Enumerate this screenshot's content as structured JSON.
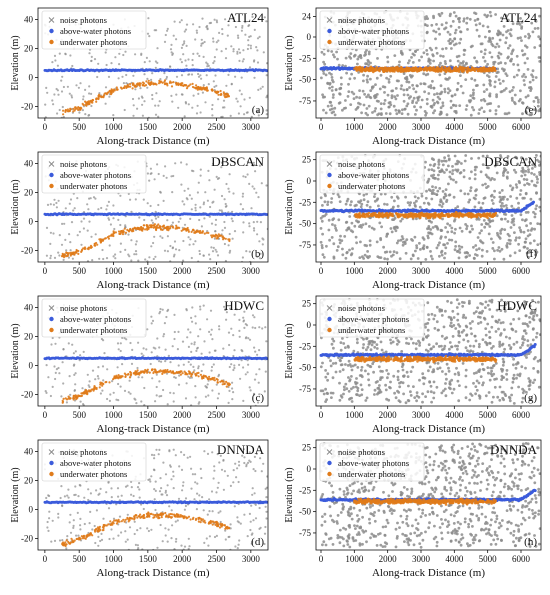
{
  "figure": {
    "legend_labels": [
      "noise photons",
      "above-water photons",
      "underwater photons"
    ],
    "colors": {
      "noise": "#8c8c8c",
      "above": "#3b5bdb",
      "under": "#e07b1a",
      "axis": "#111111"
    }
  },
  "chart_data": [
    {
      "type": "scatter",
      "panel": "a",
      "method": "ATL24",
      "xlabel": "Along-track Distance (m)",
      "ylabel": "Elevation (m)",
      "xlim": [
        -100,
        3250
      ],
      "ylim": [
        -28,
        48
      ],
      "xticks": [
        0,
        500,
        1000,
        1500,
        2000,
        2500,
        3000
      ],
      "yticks": [
        -20,
        0,
        20,
        40
      ],
      "noise": {
        "x_range": [
          0,
          3250
        ],
        "y_range": [
          -28,
          42
        ]
      },
      "above_water": {
        "x": [
          0,
          3250
        ],
        "y": 5
      },
      "underwater_profile": {
        "x": [
          250,
          500,
          750,
          1000,
          1250,
          1500,
          1750,
          2000,
          2250,
          2500,
          2700
        ],
        "y": [
          -24,
          -21,
          -15,
          -9,
          -6,
          -4,
          -4,
          -5,
          -7,
          -10,
          -13
        ]
      },
      "grid": false,
      "legend_position": "upper-left",
      "title_position": "upper-right"
    },
    {
      "type": "scatter",
      "panel": "b",
      "method": "DBSCAN",
      "xlabel": "Along-track Distance (m)",
      "ylabel": "Elevation (m)",
      "xlim": [
        -100,
        3250
      ],
      "ylim": [
        -28,
        48
      ],
      "xticks": [
        0,
        500,
        1000,
        1500,
        2000,
        2500,
        3000
      ],
      "yticks": [
        -20,
        0,
        20,
        40
      ],
      "noise": {
        "x_range": [
          0,
          3250
        ],
        "y_range": [
          -28,
          42
        ]
      },
      "above_water": {
        "x": [
          0,
          3250
        ],
        "y": 5
      },
      "underwater_profile": {
        "x": [
          250,
          500,
          750,
          1000,
          1250,
          1500,
          1750,
          2000,
          2250,
          2500,
          2700
        ],
        "y": [
          -24,
          -21,
          -15,
          -9,
          -6,
          -4,
          -4,
          -5,
          -7,
          -10,
          -13
        ]
      },
      "grid": false,
      "legend_position": "upper-left",
      "title_position": "upper-right"
    },
    {
      "type": "scatter",
      "panel": "c",
      "method": "HDWC",
      "xlabel": "Along-track Distance (m)",
      "ylabel": "Elevation (m)",
      "xlim": [
        -100,
        3250
      ],
      "ylim": [
        -28,
        48
      ],
      "xticks": [
        0,
        500,
        1000,
        1500,
        2000,
        2500,
        3000
      ],
      "yticks": [
        -20,
        0,
        20,
        40
      ],
      "noise": {
        "x_range": [
          0,
          3250
        ],
        "y_range": [
          -28,
          42
        ]
      },
      "above_water": {
        "x": [
          0,
          3250
        ],
        "y": 5
      },
      "underwater_profile": {
        "x": [
          250,
          500,
          750,
          1000,
          1250,
          1500,
          1750,
          2000,
          2250,
          2500,
          2700
        ],
        "y": [
          -24,
          -21,
          -15,
          -9,
          -6,
          -4,
          -4,
          -5,
          -7,
          -10,
          -13
        ]
      },
      "grid": false,
      "legend_position": "upper-left",
      "title_position": "upper-right"
    },
    {
      "type": "scatter",
      "panel": "d",
      "method": "DNNDA",
      "xlabel": "Along-track Distance (m)",
      "ylabel": "Elevation (m)",
      "xlim": [
        -100,
        3250
      ],
      "ylim": [
        -28,
        48
      ],
      "xticks": [
        0,
        500,
        1000,
        1500,
        2000,
        2500,
        3000
      ],
      "yticks": [
        -20,
        0,
        20,
        40
      ],
      "noise": {
        "x_range": [
          0,
          3250
        ],
        "y_range": [
          -28,
          42
        ]
      },
      "above_water": {
        "x": [
          0,
          3250
        ],
        "y": 5
      },
      "underwater_profile": {
        "x": [
          250,
          500,
          750,
          1000,
          1250,
          1500,
          1750,
          2000,
          2250,
          2500,
          2700
        ],
        "y": [
          -24,
          -21,
          -15,
          -9,
          -6,
          -4,
          -4,
          -5,
          -7,
          -10,
          -13
        ]
      },
      "grid": false,
      "legend_position": "upper-left",
      "title_position": "upper-right"
    },
    {
      "type": "scatter",
      "panel": "e",
      "method": "ATL24",
      "xlabel": "Along-track Distance (m)",
      "ylabel": "Elevation (m)",
      "xlim": [
        -150,
        6600
      ],
      "ylim": [
        -95,
        34
      ],
      "xticks": [
        0,
        1000,
        2000,
        3000,
        4000,
        5000,
        6000
      ],
      "yticks": [
        -75,
        -50,
        -25,
        0,
        24
      ],
      "noise": {
        "x_range": [
          0,
          6600
        ],
        "y_range": [
          -92,
          30
        ]
      },
      "above_water": {
        "x": [
          0,
          5250
        ],
        "y": -37
      },
      "underwater_profile": {
        "x": [
          1000,
          5250
        ],
        "y": [
          -38,
          -38
        ]
      },
      "grid": false,
      "legend_position": "upper-left",
      "title_position": "upper-right"
    },
    {
      "type": "scatter",
      "panel": "f",
      "method": "DBSCAN",
      "xlabel": "Along-track Distance (m)",
      "ylabel": "Elevation (m)",
      "xlim": [
        -150,
        6600
      ],
      "ylim": [
        -95,
        34
      ],
      "xticks": [
        0,
        1000,
        2000,
        3000,
        4000,
        5000,
        6000
      ],
      "yticks": [
        -75,
        -50,
        -25,
        0,
        25
      ],
      "noise": {
        "x_range": [
          0,
          6600
        ],
        "y_range": [
          -92,
          30
        ]
      },
      "above_water": {
        "x": [
          0,
          6400
        ],
        "y": -35
      },
      "underwater_profile": {
        "x": [
          1000,
          5250
        ],
        "y": [
          -40,
          -40
        ]
      },
      "grid": false,
      "legend_position": "upper-left",
      "title_position": "upper-right"
    },
    {
      "type": "scatter",
      "panel": "g",
      "method": "HDWC",
      "xlabel": "Along-track Distance (m)",
      "ylabel": "Elevation (m)",
      "xlim": [
        -150,
        6600
      ],
      "ylim": [
        -95,
        34
      ],
      "xticks": [
        0,
        1000,
        2000,
        3000,
        4000,
        5000,
        6000
      ],
      "yticks": [
        -75,
        -50,
        -25,
        0,
        25
      ],
      "noise": {
        "x_range": [
          0,
          6600
        ],
        "y_range": [
          -92,
          30
        ]
      },
      "above_water": {
        "x": [
          0,
          6450
        ],
        "y": -35
      },
      "underwater_profile": {
        "x": [
          1000,
          5250
        ],
        "y": [
          -40,
          -40
        ]
      },
      "grid": false,
      "legend_position": "upper-left",
      "title_position": "upper-right"
    },
    {
      "type": "scatter",
      "panel": "h",
      "method": "DNNDA",
      "xlabel": "Along-track Distance (m)",
      "ylabel": "Elevation (m)",
      "xlim": [
        -150,
        6600
      ],
      "ylim": [
        -95,
        34
      ],
      "xticks": [
        0,
        1000,
        2000,
        3000,
        4000,
        5000,
        6000
      ],
      "yticks": [
        -75,
        -50,
        -25,
        0,
        25
      ],
      "noise": {
        "x_range": [
          0,
          6600
        ],
        "y_range": [
          -92,
          30
        ]
      },
      "above_water": {
        "x": [
          0,
          6450
        ],
        "y": -36
      },
      "underwater_profile": {
        "x": [
          1000,
          5250
        ],
        "y": [
          -38,
          -38
        ]
      },
      "grid": false,
      "legend_position": "upper-left",
      "title_position": "upper-right"
    }
  ]
}
